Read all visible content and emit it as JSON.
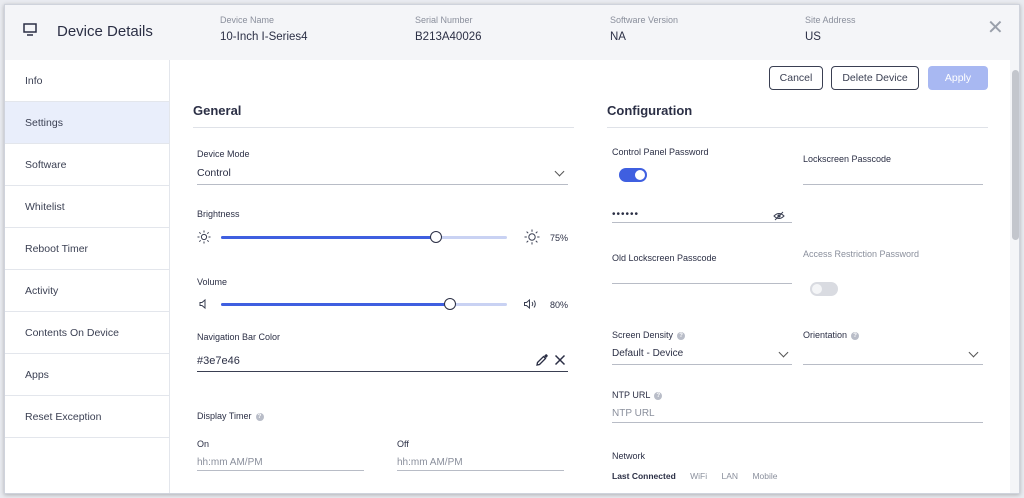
{
  "header": {
    "title": "Device Details",
    "meta": [
      {
        "label": "Device Name",
        "value": "10-Inch I-Series4"
      },
      {
        "label": "Serial Number",
        "value": "B213A40026"
      },
      {
        "label": "Software Version",
        "value": "NA"
      },
      {
        "label": "Site Address",
        "value": "US"
      }
    ],
    "close_label": "✕"
  },
  "sidebar": {
    "items": [
      {
        "label": "Info"
      },
      {
        "label": "Settings"
      },
      {
        "label": "Software"
      },
      {
        "label": "Whitelist"
      },
      {
        "label": "Reboot Timer"
      },
      {
        "label": "Activity"
      },
      {
        "label": "Contents On Device"
      },
      {
        "label": "Apps"
      },
      {
        "label": "Reset Exception"
      }
    ],
    "active": "Settings"
  },
  "actions": {
    "cancel": "Cancel",
    "delete": "Delete Device",
    "apply": "Apply"
  },
  "general": {
    "title": "General",
    "device_mode": {
      "label": "Device Mode",
      "value": "Control"
    },
    "brightness": {
      "label": "Brightness",
      "value_text": "75%",
      "level": 0.75
    },
    "volume": {
      "label": "Volume",
      "value_text": "80%",
      "level": 0.8
    },
    "nav_bar_color": {
      "label": "Navigation Bar Color",
      "value": "#3e7e46"
    },
    "display_timer": {
      "label": "Display Timer",
      "on_label": "On",
      "on_placeholder": "hh:mm AM/PM",
      "off_label": "Off",
      "off_placeholder": "hh:mm AM/PM"
    }
  },
  "configuration": {
    "title": "Configuration",
    "control_panel_password": {
      "label": "Control Panel Password",
      "enabled": true,
      "value": "••••••"
    },
    "lockscreen_passcode": {
      "label": "Lockscreen Passcode"
    },
    "old_lockscreen_passcode": {
      "label": "Old Lockscreen Passcode"
    },
    "access_restriction_password": {
      "label": "Access Restriction Password",
      "enabled": false
    },
    "screen_density": {
      "label": "Screen Density",
      "value": "Default - Device"
    },
    "orientation": {
      "label": "Orientation",
      "value": ""
    },
    "ntp_url": {
      "label": "NTP URL",
      "placeholder": "NTP URL"
    },
    "network": {
      "label": "Network",
      "tabs": [
        "Last Connected",
        "WiFi",
        "LAN",
        "Mobile"
      ],
      "active_tab": "Last Connected"
    }
  },
  "colors": {
    "accent": "#3f5fe0",
    "apply_bg": "#a8b8f2",
    "active_nav_bg": "#e9eefb"
  }
}
